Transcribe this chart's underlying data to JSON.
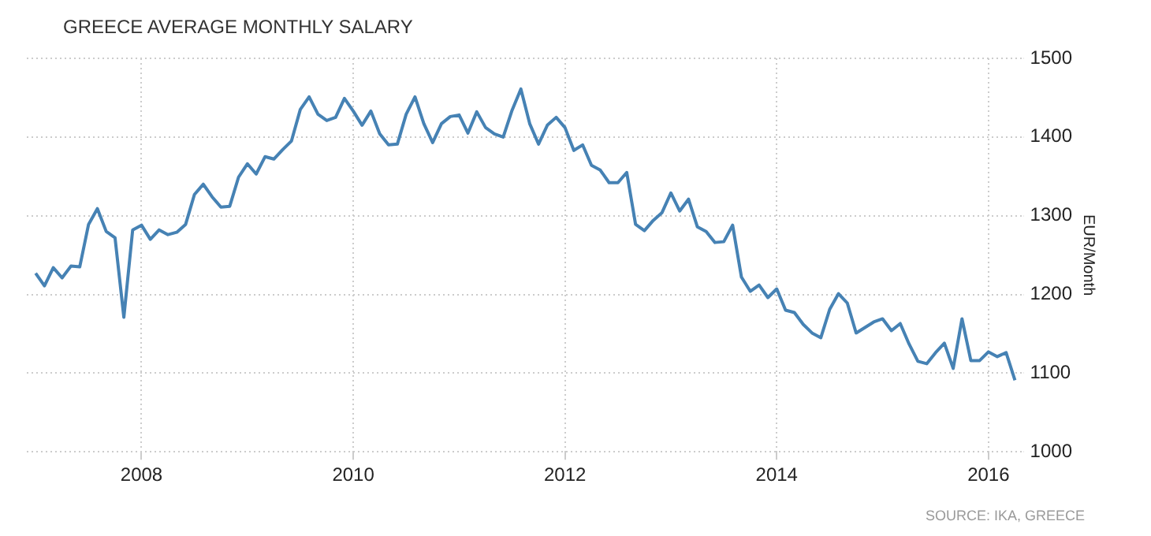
{
  "chart_data": {
    "type": "line",
    "title": "GREECE AVERAGE MONTHLY SALARY",
    "ylabel": "EUR/Month",
    "annotations": [
      "SOURCE: IKA, GREECE"
    ],
    "x": [
      "2007-01",
      "2007-02",
      "2007-03",
      "2007-04",
      "2007-05",
      "2007-06",
      "2007-07",
      "2007-08",
      "2007-09",
      "2007-10",
      "2007-11",
      "2007-12",
      "2008-01",
      "2008-02",
      "2008-03",
      "2008-04",
      "2008-05",
      "2008-06",
      "2008-07",
      "2008-08",
      "2008-09",
      "2008-10",
      "2008-11",
      "2008-12",
      "2009-01",
      "2009-02",
      "2009-03",
      "2009-04",
      "2009-05",
      "2009-06",
      "2009-07",
      "2009-08",
      "2009-09",
      "2009-10",
      "2009-11",
      "2009-12",
      "2010-01",
      "2010-02",
      "2010-03",
      "2010-04",
      "2010-05",
      "2010-06",
      "2010-07",
      "2010-08",
      "2010-09",
      "2010-10",
      "2010-11",
      "2010-12",
      "2011-01",
      "2011-02",
      "2011-03",
      "2011-04",
      "2011-05",
      "2011-06",
      "2011-07",
      "2011-08",
      "2011-09",
      "2011-10",
      "2011-11",
      "2011-12",
      "2012-01",
      "2012-02",
      "2012-03",
      "2012-04",
      "2012-05",
      "2012-06",
      "2012-07",
      "2012-08",
      "2012-09",
      "2012-10",
      "2012-11",
      "2012-12",
      "2013-01",
      "2013-02",
      "2013-03",
      "2013-04",
      "2013-05",
      "2013-06",
      "2013-07",
      "2013-08",
      "2013-09",
      "2013-10",
      "2013-11",
      "2013-12",
      "2014-01",
      "2014-02",
      "2014-03",
      "2014-04",
      "2014-05",
      "2014-06",
      "2014-07",
      "2014-08",
      "2014-09",
      "2014-10",
      "2014-11",
      "2014-12",
      "2015-01",
      "2015-02",
      "2015-03",
      "2015-04",
      "2015-05",
      "2015-06",
      "2015-07",
      "2015-08",
      "2015-09",
      "2015-10",
      "2015-11",
      "2015-12",
      "2016-01",
      "2016-02",
      "2016-03",
      "2016-04"
    ],
    "series": [
      {
        "color": "#4682b4",
        "values": [
          1227,
          1211,
          1234,
          1221,
          1236,
          1235,
          1289,
          1309,
          1280,
          1272,
          1171,
          1282,
          1288,
          1270,
          1282,
          1276,
          1279,
          1289,
          1327,
          1340,
          1324,
          1311,
          1312,
          1349,
          1366,
          1353,
          1375,
          1372,
          1384,
          1395,
          1435,
          1451,
          1429,
          1421,
          1425,
          1449,
          1433,
          1415,
          1433,
          1404,
          1390,
          1391,
          1429,
          1451,
          1417,
          1393,
          1417,
          1426,
          1428,
          1405,
          1432,
          1412,
          1404,
          1400,
          1434,
          1461,
          1417,
          1391,
          1415,
          1425,
          1412,
          1383,
          1390,
          1364,
          1358,
          1342,
          1342,
          1355,
          1289,
          1281,
          1294,
          1304,
          1329,
          1306,
          1321,
          1286,
          1280,
          1266,
          1267,
          1288,
          1222,
          1204,
          1212,
          1196,
          1207,
          1180,
          1177,
          1162,
          1151,
          1145,
          1181,
          1201,
          1189,
          1151,
          1158,
          1165,
          1169,
          1154,
          1163,
          1137,
          1115,
          1112,
          1126,
          1138,
          1106,
          1169,
          1116,
          1116,
          1127,
          1121,
          1126,
          1091
        ]
      }
    ],
    "xlim": [
      "2006-12",
      "2016-05"
    ],
    "xticks": [
      "2008",
      "2010",
      "2012",
      "2014",
      "2016"
    ],
    "ylim": [
      1000,
      1500
    ],
    "yticks": [
      1000,
      1100,
      1200,
      1300,
      1400,
      1500
    ],
    "grid": true,
    "legend": false,
    "marker": "none",
    "line_style": "solid"
  }
}
